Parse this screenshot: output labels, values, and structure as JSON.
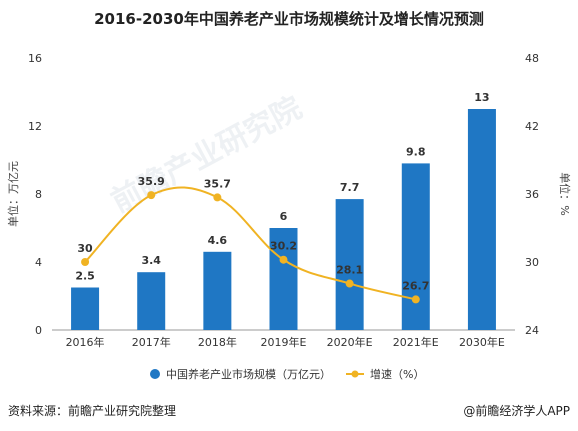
{
  "title": "2016-2030年中国养老产业市场规模统计及增长情况预测",
  "source": "资料来源：前瞻产业研究院整理",
  "credit": "@前瞻经济学人APP",
  "watermark": "前瞻产业研究院",
  "colors": {
    "bar": "#1f77c4",
    "line": "#f0b323",
    "axis": "#999999"
  },
  "chart_data": {
    "type": "bar",
    "categories": [
      "2016年",
      "2017年",
      "2018年",
      "2019年E",
      "2020年E",
      "2021年E",
      "2030年E"
    ],
    "series": [
      {
        "name": "中国养老产业市场规模（万亿元）",
        "type": "bar",
        "axis": "left",
        "values": [
          2.5,
          3.4,
          4.6,
          6,
          7.7,
          9.8,
          13
        ],
        "labels": [
          "2.5",
          "3.4",
          "4.6",
          "6",
          "7.7",
          "9.8",
          "13"
        ]
      },
      {
        "name": "增速（%）",
        "type": "line",
        "axis": "right",
        "values": [
          30,
          35.9,
          35.7,
          30.2,
          28.1,
          26.7,
          null
        ],
        "labels": [
          "30",
          "35.9",
          "35.7",
          "30.2",
          "28.1",
          "26.7",
          ""
        ]
      }
    ],
    "ylabel": "单位：万亿元",
    "y2label": "单位：%",
    "ylim": [
      0,
      16
    ],
    "yticks": [
      0,
      4,
      8,
      12,
      16
    ],
    "y2lim": [
      24,
      48
    ],
    "y2ticks": [
      24,
      30,
      36,
      42,
      48
    ],
    "legend": "bottom",
    "grid": false
  }
}
